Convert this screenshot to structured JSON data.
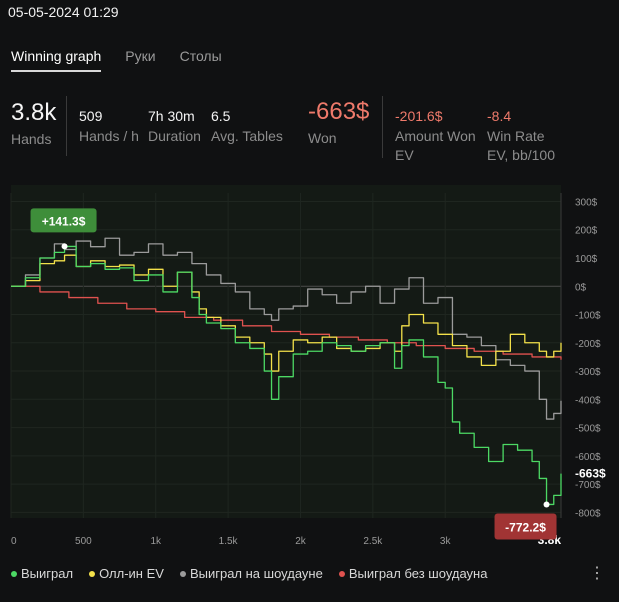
{
  "timestamp": "05-05-2024 01:29",
  "tabs": [
    {
      "label": "Winning graph",
      "active": true
    },
    {
      "label": "Руки",
      "active": false
    },
    {
      "label": "Столы",
      "active": false
    }
  ],
  "stats": {
    "hands": {
      "value": "3.8k",
      "label": "Hands"
    },
    "hands_per_h": {
      "value": "509",
      "label": "Hands / h"
    },
    "duration": {
      "value": "7h 30m",
      "label": "Duration"
    },
    "avg_tables": {
      "value": "6.5",
      "label": "Avg. Tables"
    },
    "won": {
      "value": "-663$",
      "label": "Won"
    },
    "amount_won_ev": {
      "value": "-201.6$",
      "label": "Amount Won EV"
    },
    "win_rate_ev": {
      "value": "-8.4",
      "label": "Win Rate EV, bb/100"
    }
  },
  "chart_data": {
    "type": "line",
    "x_ticks": [
      "0",
      "500",
      "1k",
      "1.5k",
      "2k",
      "2.5k",
      "3k",
      "3.8k"
    ],
    "x_tick_values": [
      0,
      500,
      1000,
      1500,
      2000,
      2500,
      3000,
      3800
    ],
    "y_ticks": [
      "300$",
      "200$",
      "100$",
      "0$",
      "-100$",
      "-200$",
      "-300$",
      "-400$",
      "-500$",
      "-600$",
      "-700$",
      "-800$"
    ],
    "y_tick_values": [
      300,
      200,
      100,
      0,
      -100,
      -200,
      -300,
      -400,
      -500,
      -600,
      -700,
      -800
    ],
    "xlim": [
      0,
      3800
    ],
    "ylim": [
      -820,
      330
    ],
    "max_marker": {
      "x": 370,
      "y": 141.3,
      "label": "+141.3$"
    },
    "min_marker": {
      "x": 3700,
      "y": -772.2,
      "label": "-772.2$"
    },
    "end_label": "-663$",
    "series": [
      {
        "name": "Выиграл",
        "color": "#4cd964",
        "x": [
          0,
          100,
          200,
          300,
          370,
          450,
          550,
          650,
          750,
          850,
          950,
          1050,
          1150,
          1250,
          1300,
          1350,
          1450,
          1550,
          1650,
          1750,
          1800,
          1850,
          1950,
          2050,
          2150,
          2250,
          2350,
          2450,
          2550,
          2650,
          2700,
          2750,
          2850,
          2950,
          3000,
          3050,
          3100,
          3200,
          3300,
          3400,
          3500,
          3600,
          3650,
          3700,
          3750,
          3800
        ],
        "y": [
          0,
          30,
          100,
          120,
          141,
          70,
          80,
          60,
          65,
          20,
          40,
          -20,
          50,
          -40,
          -100,
          -130,
          -150,
          -200,
          -220,
          -300,
          -400,
          -320,
          -240,
          -230,
          -200,
          -210,
          -230,
          -210,
          -200,
          -290,
          -210,
          -190,
          -250,
          -340,
          -360,
          -480,
          -520,
          -570,
          -620,
          -560,
          -580,
          -620,
          -680,
          -772,
          -740,
          -663
        ]
      },
      {
        "name": "Олл-ин EV",
        "color": "#f3e14a",
        "x": [
          0,
          100,
          200,
          300,
          370,
          450,
          550,
          650,
          750,
          850,
          950,
          1050,
          1150,
          1250,
          1300,
          1350,
          1450,
          1550,
          1650,
          1750,
          1800,
          1850,
          1950,
          2050,
          2150,
          2250,
          2350,
          2450,
          2550,
          2650,
          2700,
          2750,
          2850,
          2950,
          3050,
          3150,
          3250,
          3350,
          3450,
          3550,
          3650,
          3700,
          3750,
          3800
        ],
        "y": [
          0,
          20,
          80,
          90,
          110,
          70,
          90,
          70,
          75,
          40,
          60,
          0,
          50,
          -20,
          -80,
          -110,
          -140,
          -180,
          -200,
          -240,
          -300,
          -230,
          -190,
          -200,
          -180,
          -220,
          -230,
          -220,
          -200,
          -230,
          -140,
          -100,
          -130,
          -170,
          -210,
          -250,
          -280,
          -230,
          -170,
          -200,
          -230,
          -250,
          -230,
          -200
        ]
      },
      {
        "name": "Выиграл на шоудауне",
        "color": "#9b9b9b",
        "x": [
          0,
          100,
          200,
          300,
          370,
          450,
          550,
          650,
          750,
          850,
          950,
          1050,
          1150,
          1250,
          1350,
          1450,
          1550,
          1650,
          1750,
          1800,
          1850,
          1950,
          2050,
          2150,
          2250,
          2350,
          2450,
          2550,
          2650,
          2750,
          2850,
          2950,
          3050,
          3150,
          3250,
          3350,
          3450,
          3550,
          3650,
          3700,
          3750,
          3800
        ],
        "y": [
          0,
          40,
          100,
          150,
          130,
          160,
          140,
          170,
          110,
          120,
          150,
          110,
          120,
          80,
          40,
          10,
          -20,
          -80,
          -100,
          -120,
          -80,
          -70,
          -10,
          -30,
          -60,
          -20,
          0,
          -60,
          -10,
          30,
          -60,
          -40,
          -170,
          -180,
          -210,
          -260,
          -280,
          -300,
          -400,
          -470,
          -450,
          -405
        ]
      },
      {
        "name": "Выиграл без шоудауна",
        "color": "#e0524f",
        "x": [
          0,
          200,
          400,
          600,
          800,
          1000,
          1200,
          1400,
          1600,
          1800,
          2000,
          2200,
          2400,
          2600,
          2800,
          3000,
          3200,
          3400,
          3600,
          3800
        ],
        "y": [
          0,
          -20,
          -40,
          -60,
          -80,
          -90,
          -110,
          -120,
          -140,
          -160,
          -170,
          -180,
          -190,
          -200,
          -210,
          -220,
          -230,
          -240,
          -250,
          -260
        ]
      }
    ]
  },
  "legend_more": "⋮"
}
